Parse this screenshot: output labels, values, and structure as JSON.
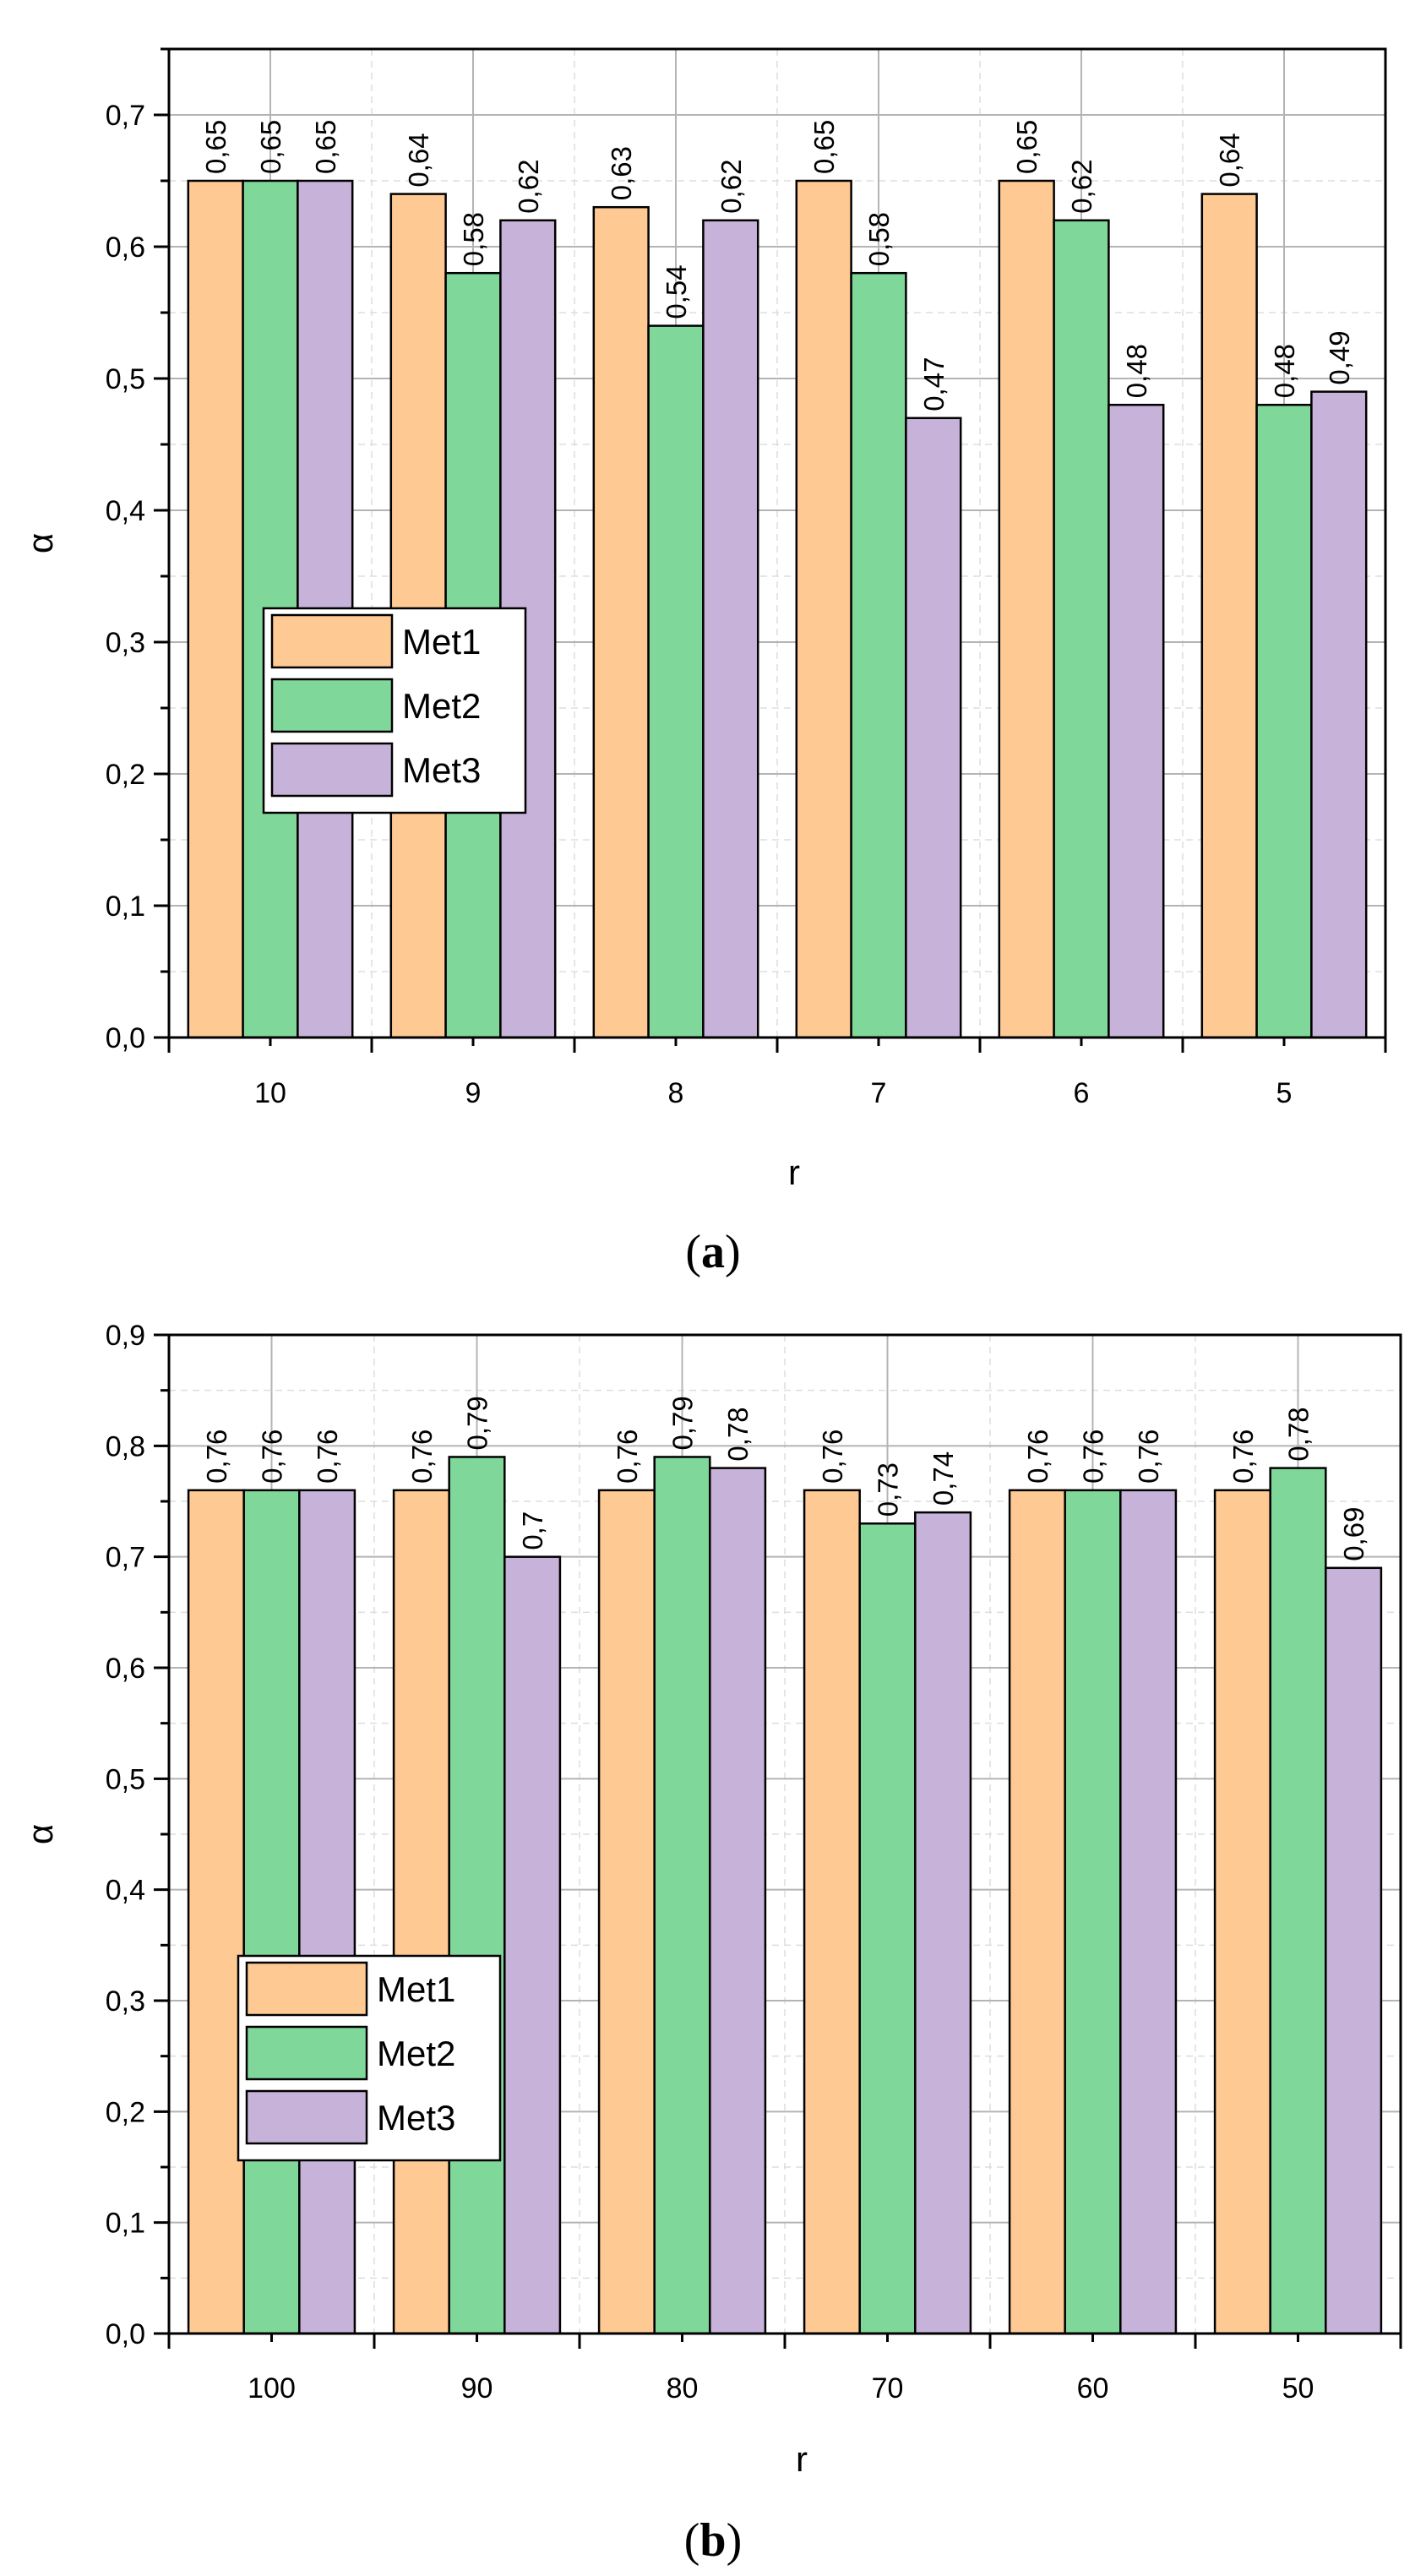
{
  "chart_data": [
    {
      "type": "bar",
      "panel_label": "a",
      "categories": [
        "10",
        "9",
        "8",
        "7",
        "6",
        "5"
      ],
      "series": [
        {
          "name": "Met1",
          "values": [
            0.65,
            0.64,
            0.63,
            0.65,
            0.65,
            0.64
          ],
          "labels": [
            "0,65",
            "0,64",
            "0,63",
            "0,65",
            "0,65",
            "0,64"
          ],
          "color": "#FFC994"
        },
        {
          "name": "Met2",
          "values": [
            0.65,
            0.58,
            0.54,
            0.58,
            0.62,
            0.48
          ],
          "labels": [
            "0,65",
            "0,58",
            "0,54",
            "0,58",
            "0,62",
            "0,48"
          ],
          "color": "#7FD89A"
        },
        {
          "name": "Met3",
          "values": [
            0.65,
            0.62,
            0.62,
            0.47,
            0.48,
            0.49
          ],
          "labels": [
            "0,65",
            "0,62",
            "0,62",
            "0,47",
            "0,48",
            "0,49"
          ],
          "color": "#C7B3D9"
        }
      ],
      "xlabel": "r",
      "ylabel": "α",
      "ylim": [
        0,
        0.75
      ],
      "yticks": [
        0,
        0.1,
        0.2,
        0.3,
        0.4,
        0.5,
        0.6,
        0.7
      ],
      "ytick_labels": [
        "0,0",
        "0,1",
        "0,2",
        "0,3",
        "0,4",
        "0,5",
        "0,6",
        "0,7"
      ],
      "grid": true,
      "legend_position": "middle-left"
    },
    {
      "type": "bar",
      "panel_label": "b",
      "categories": [
        "100",
        "90",
        "80",
        "70",
        "60",
        "50"
      ],
      "series": [
        {
          "name": "Met1",
          "values": [
            0.76,
            0.76,
            0.76,
            0.76,
            0.76,
            0.76
          ],
          "labels": [
            "0,76",
            "0,76",
            "0,76",
            "0,76",
            "0,76",
            "0,76"
          ],
          "color": "#FFC994"
        },
        {
          "name": "Met2",
          "values": [
            0.76,
            0.79,
            0.79,
            0.73,
            0.76,
            0.78
          ],
          "labels": [
            "0,76",
            "0,79",
            "0,79",
            "0,73",
            "0,76",
            "0,78"
          ],
          "color": "#7FD89A"
        },
        {
          "name": "Met3",
          "values": [
            0.76,
            0.7,
            0.78,
            0.74,
            0.76,
            0.69
          ],
          "labels": [
            "0,76",
            "0,7",
            "0,78",
            "0,74",
            "0,76",
            "0,69"
          ],
          "color": "#C7B3D9"
        }
      ],
      "xlabel": "r",
      "ylabel": "α",
      "ylim": [
        0,
        0.9
      ],
      "yticks": [
        0,
        0.1,
        0.2,
        0.3,
        0.4,
        0.5,
        0.6,
        0.7,
        0.8,
        0.9
      ],
      "ytick_labels": [
        "0,0",
        "0,1",
        "0,2",
        "0,3",
        "0,4",
        "0,5",
        "0,6",
        "0,7",
        "0,8",
        "0,9"
      ],
      "grid": true,
      "legend_position": "lower-left"
    }
  ]
}
